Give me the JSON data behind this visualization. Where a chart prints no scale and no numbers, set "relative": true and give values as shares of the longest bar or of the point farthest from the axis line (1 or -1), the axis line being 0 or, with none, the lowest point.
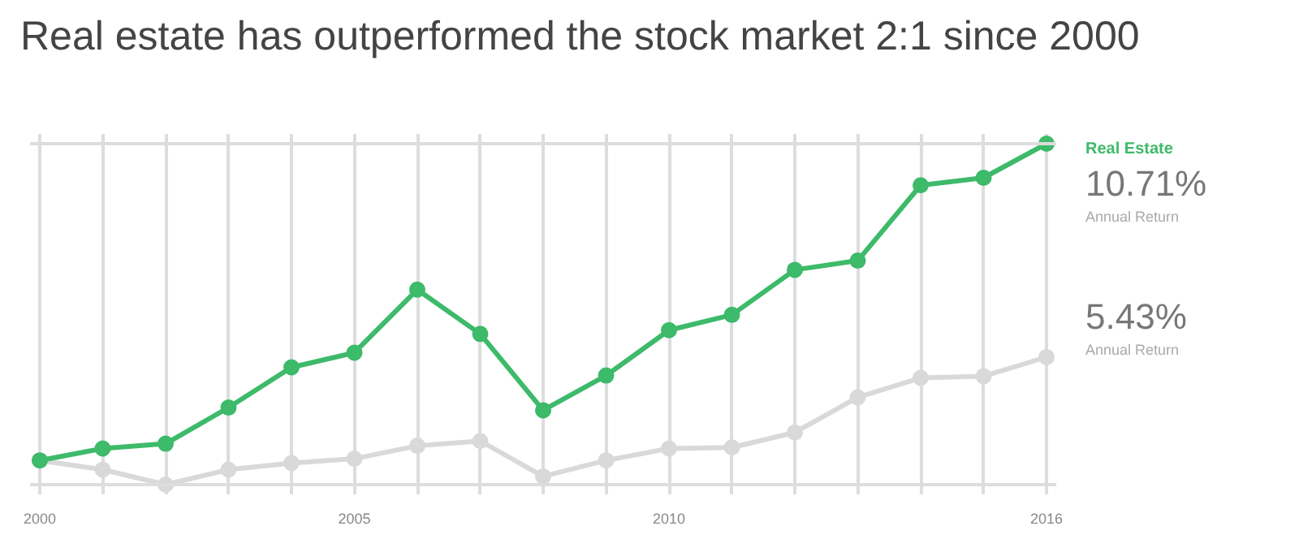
{
  "chart_data": {
    "type": "line",
    "title": "Real estate has outperformed the stock market 2:1 since 2000",
    "relative": true,
    "x": [
      2000,
      2001,
      2002,
      2003,
      2004,
      2005,
      2006,
      2007,
      2008,
      2009,
      2010,
      2011,
      2012,
      2013,
      2014,
      2015,
      2016
    ],
    "xlim": [
      2000,
      2016
    ],
    "xticks": [
      2000,
      {
        "value": 2001,
        "label": null
      },
      {
        "value": 2002,
        "label": null
      },
      {
        "value": 2003,
        "label": null
      },
      {
        "value": 2004,
        "label": null
      },
      2005,
      {
        "value": 2006,
        "label": null
      },
      {
        "value": 2007,
        "label": null
      },
      {
        "value": 2008,
        "label": null
      },
      {
        "value": 2009,
        "label": null
      },
      2010,
      {
        "value": 2011,
        "label": null
      },
      {
        "value": 2012,
        "label": null
      },
      {
        "value": 2013,
        "label": null
      },
      {
        "value": 2014,
        "label": null
      },
      {
        "value": 2015,
        "label": null
      },
      2016
    ],
    "series": [
      {
        "name": "Real Estate",
        "color": "#3dba6a",
        "values": [
          0.071,
          0.106,
          0.12,
          0.226,
          0.344,
          0.387,
          0.572,
          0.442,
          0.218,
          0.32,
          0.453,
          0.498,
          0.63,
          0.657,
          0.878,
          0.9,
          1
        ]
      },
      {
        "color": "#d9d9d9",
        "values": [
          0.071,
          0.044,
          0,
          0.044,
          0.063,
          0.076,
          0.114,
          0.128,
          0.024,
          0.071,
          0.106,
          0.109,
          0.153,
          0.256,
          0.313,
          0.318,
          0.374
        ]
      }
    ],
    "annotations": [
      "10.71%",
      "Annual Return",
      "5.43%",
      "Annual Return"
    ],
    "grid": "x",
    "marker": "circle",
    "line_style": "solid"
  }
}
